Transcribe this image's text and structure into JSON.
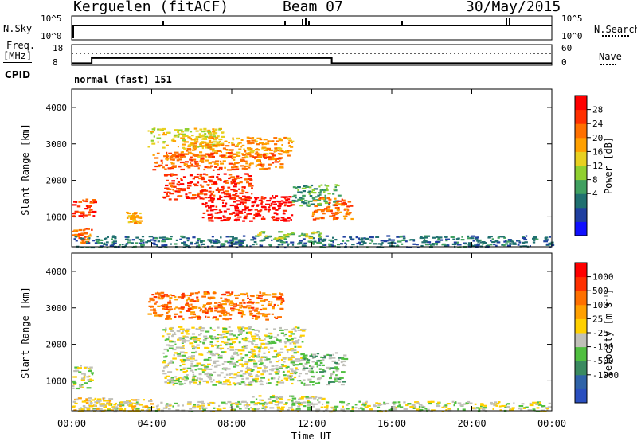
{
  "header": {
    "station": "Kerguelen (fitACF)",
    "beam": "Beam 07",
    "date": "30/May/2015"
  },
  "colors": {
    "ink": "#000000",
    "background": "#ffffff",
    "ground_scatter": "#c0c0b8"
  },
  "summary": {
    "nsky_label": "N.Sky",
    "nsky_ticks": [
      "10^5",
      "10^0"
    ],
    "nsearch_label": "N.Search",
    "nsearch_ticks": [
      "10^5",
      "10^0"
    ],
    "freq_label": "Freq.",
    "freq_unit": "[MHz]",
    "freq_ticks": [
      "18",
      "8"
    ],
    "nave_label": "Nave",
    "nave_ticks": [
      "60",
      "0"
    ],
    "cpid_label": "CPID",
    "cpid_value": "normal (fast) 151",
    "freq_steps": [
      {
        "t": 0,
        "mhz": 9
      },
      {
        "t": 1,
        "mhz": 11.5
      },
      {
        "t": 13,
        "mhz": 9
      }
    ],
    "nave_value": 35
  },
  "panels": {
    "range_ylabel": "Slant Range [km]",
    "range_ticks": [
      "4000",
      "3000",
      "2000",
      "1000"
    ],
    "range_values": [
      4000,
      3000,
      2000,
      1000
    ],
    "range_limits": [
      180,
      4500
    ]
  },
  "power_colorbar": {
    "label": "Power [dB]",
    "ticks": [
      "28",
      "24",
      "20",
      "16",
      "12",
      "8",
      "4"
    ],
    "colors": [
      "#1010ff",
      "#2040a0",
      "#207070",
      "#40a060",
      "#90d030",
      "#e8d020",
      "#ffa000",
      "#ff7000",
      "#ff3000",
      "#ff0000"
    ]
  },
  "velocity_colorbar": {
    "label": "Velocity [m s",
    "label_exp": "-1",
    "label_close": "]",
    "ticks": [
      "1000",
      "500",
      "100",
      "25",
      "-25",
      "-100",
      "-500",
      "-1000"
    ],
    "colors": [
      "#2a4fbf",
      "#2f63a8",
      "#3a8a60",
      "#50bf40",
      "#c0c0b8",
      "#ffd000",
      "#ffa000",
      "#ff7000",
      "#ff3000",
      "#ff0000"
    ]
  },
  "x_axis": {
    "ticks": [
      "00:00",
      "04:00",
      "08:00",
      "12:00",
      "16:00",
      "20:00",
      "00:00"
    ],
    "hours": [
      0,
      4,
      8,
      12,
      16,
      20,
      24
    ],
    "label": "Time UT"
  },
  "chart_data": {
    "type": "heatmap",
    "x_unit": "hours UT",
    "y_unit": "km",
    "xlim": [
      0,
      24
    ],
    "power_regions": [
      {
        "t0": 3.8,
        "t1": 7.5,
        "r0": 2900,
        "r1": 3450,
        "level": 5
      },
      {
        "t0": 5.5,
        "t1": 11.0,
        "r0": 2650,
        "r1": 3200,
        "level": 6
      },
      {
        "t0": 4.0,
        "t1": 10.5,
        "r0": 2300,
        "r1": 2800,
        "level": 7
      },
      {
        "t0": 4.5,
        "t1": 9.0,
        "r0": 1500,
        "r1": 2200,
        "level": 8
      },
      {
        "t0": 6.5,
        "t1": 11.0,
        "r0": 900,
        "r1": 1600,
        "level": 9
      },
      {
        "t0": 11.0,
        "t1": 13.3,
        "r0": 1300,
        "r1": 1900,
        "level": 3
      },
      {
        "t0": 12.0,
        "t1": 14.0,
        "r0": 950,
        "r1": 1550,
        "level": 7
      },
      {
        "t0": 0.0,
        "t1": 1.1,
        "r0": 1000,
        "r1": 1500,
        "level": 8
      },
      {
        "t0": 0.0,
        "t1": 1.0,
        "r0": 300,
        "r1": 700,
        "level": 7
      },
      {
        "t0": 2.7,
        "t1": 3.4,
        "r0": 850,
        "r1": 1150,
        "level": 6
      },
      {
        "t0": 0.0,
        "t1": 24.0,
        "r0": 180,
        "r1": 500,
        "level": 2
      },
      {
        "t0": 9.0,
        "t1": 12.5,
        "r0": 400,
        "r1": 620,
        "level": 4
      }
    ],
    "velocity_regions": [
      {
        "t0": 3.8,
        "t1": 10.5,
        "r0": 2700,
        "r1": 3450,
        "level": 7
      },
      {
        "t0": 4.5,
        "t1": 11.5,
        "r0": 900,
        "r1": 2500,
        "level": 4
      },
      {
        "t0": 11.5,
        "t1": 13.6,
        "r0": 900,
        "r1": 1800,
        "level": 3
      },
      {
        "t0": 0.0,
        "t1": 1.0,
        "r0": 800,
        "r1": 1450,
        "level": 4
      },
      {
        "t0": 0.0,
        "t1": 24.0,
        "r0": 180,
        "r1": 450,
        "level": 4
      },
      {
        "t0": 0.0,
        "t1": 4.0,
        "r0": 180,
        "r1": 550,
        "level": 5
      },
      {
        "t0": 9.0,
        "t1": 12.5,
        "r0": 380,
        "r1": 620,
        "level": 4
      }
    ]
  }
}
